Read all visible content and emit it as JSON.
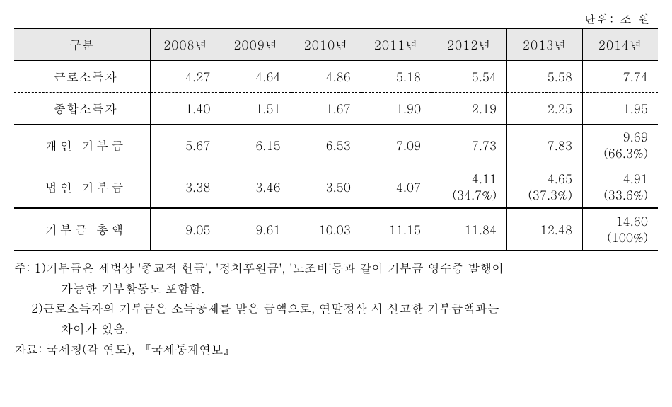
{
  "unit_label": "단위: 조 원",
  "table": {
    "header": {
      "col1": "구분",
      "years": [
        "2008년",
        "2009년",
        "2010년",
        "2011년",
        "2012년",
        "2013년",
        "2014년"
      ]
    },
    "rows": [
      {
        "label": "근로소득자",
        "values": [
          "4.27",
          "4.64",
          "4.86",
          "5.18",
          "5.54",
          "5.58",
          "7.74"
        ],
        "sub": true,
        "first": true
      },
      {
        "label": "종합소득자",
        "values": [
          "1.40",
          "1.51",
          "1.67",
          "1.90",
          "2.19",
          "2.25",
          "1.95"
        ],
        "sub": true
      },
      {
        "label": "개인 기부금",
        "values": [
          "5.67",
          "6.15",
          "6.53",
          "7.09",
          "7.73",
          "7.83",
          "9.69\n(66.3%)"
        ]
      },
      {
        "label": "법인 기부금",
        "values": [
          "3.38",
          "3.46",
          "3.50",
          "4.07",
          "4.11\n(34.7%)",
          "4.65\n(37.3%)",
          "4.91\n(33.6%)"
        ]
      },
      {
        "label": "기부금 총액",
        "values": [
          "9.05",
          "9.61",
          "10.03",
          "11.15",
          "11.84",
          "12.48",
          "14.60\n(100%)"
        ],
        "total": true
      }
    ]
  },
  "notes": {
    "note_prefix": "주: 1) ",
    "note1_line1": "기부금은 세법상 '종교적 헌금', '정치후원금', '노조비'등과 같이 기부금 영수증 발행이",
    "note1_line2": "가능한 기부활동도 포함함.",
    "note2_prefix": "2) ",
    "note2_line1": "근로소득자의 기부금은 소득공제를 받은 금액으로, 연말정산 시 신고한 기부금액과는",
    "note2_line2": "차이가 있음.",
    "source_prefix": "자료: ",
    "source_text": "국세청(각 연도), 『국세통계연보』"
  }
}
